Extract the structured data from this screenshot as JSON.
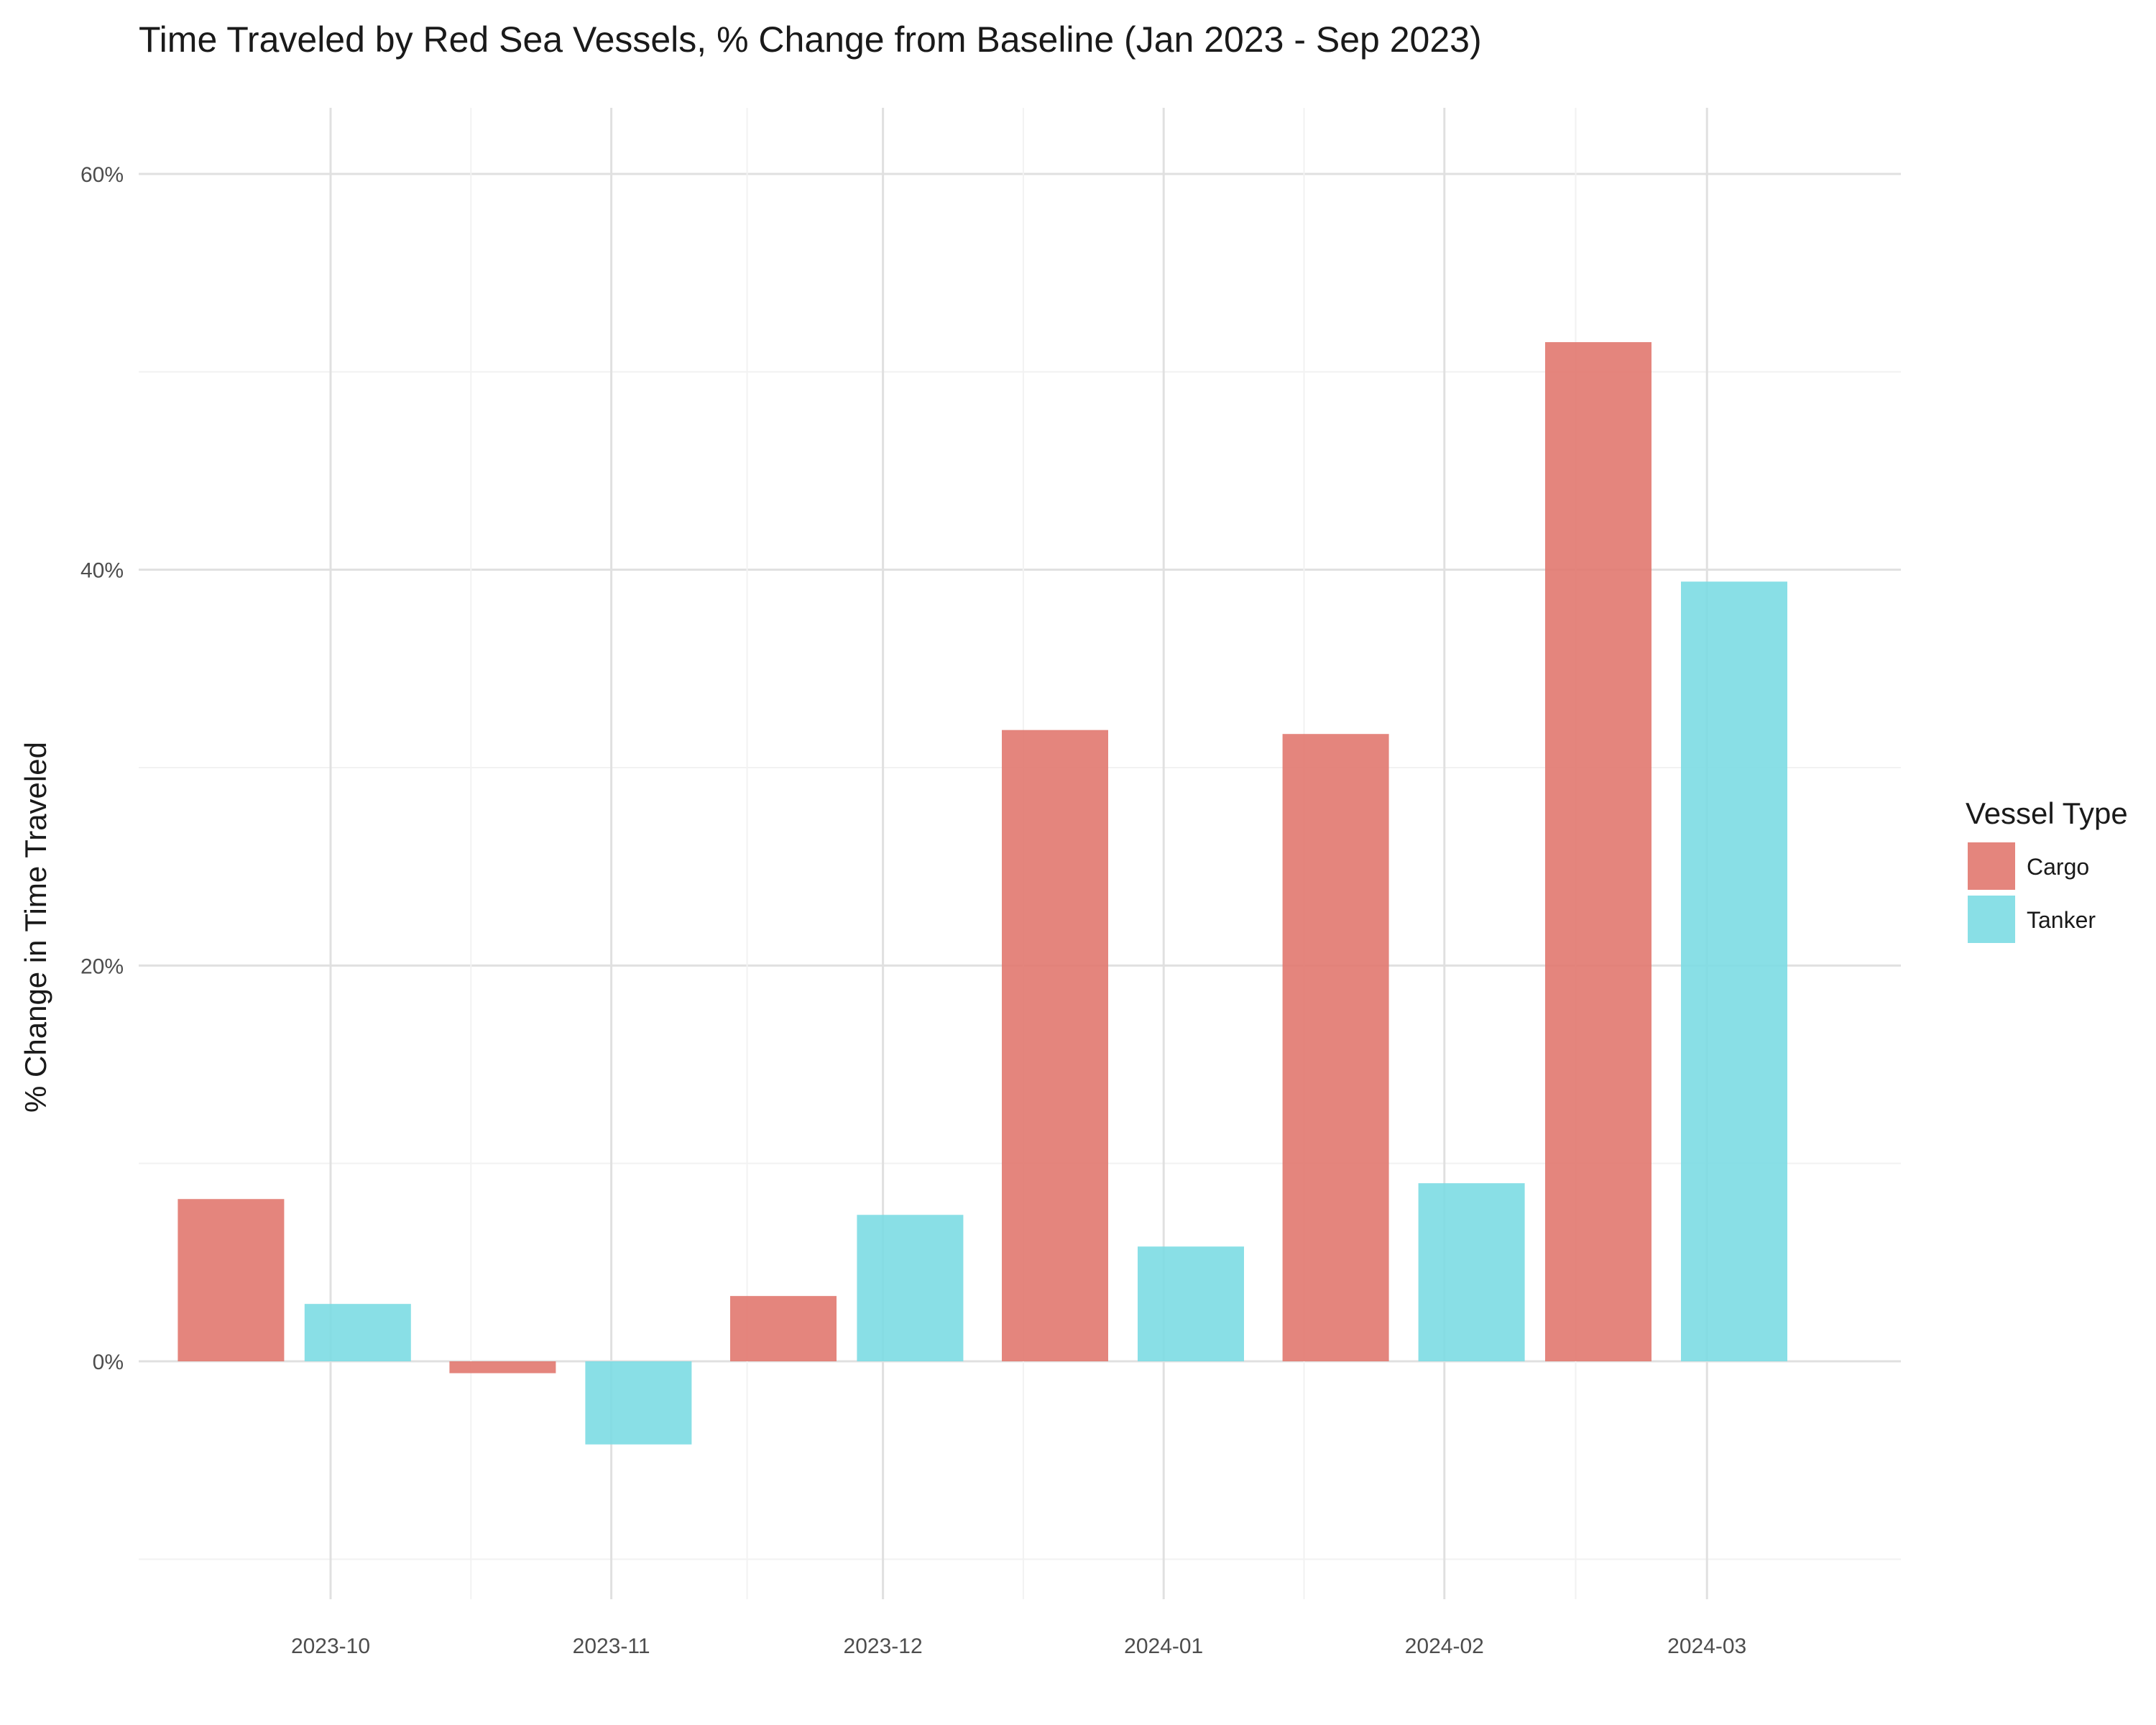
{
  "chart_data": {
    "type": "bar",
    "title": "Time Traveled by Red Sea Vessels, % Change from Baseline (Jan 2023 - Sep 2023)",
    "xlabel": "",
    "ylabel": "% Change in Time Traveled",
    "categories": [
      "2023-10",
      "2023-11",
      "2023-12",
      "2024-01",
      "2024-02",
      "2024-03"
    ],
    "category_centers": [
      "2023-10-01",
      "2023-11-01",
      "2023-12-01",
      "2024-01-01",
      "2024-02-01",
      "2024-03-01"
    ],
    "series": [
      {
        "name": "Cargo",
        "color": "#E1786F",
        "dates": [
          "2023-09-20",
          "2023-10-20",
          "2023-11-20",
          "2023-12-20",
          "2024-01-20",
          "2024-02-18"
        ],
        "values": [
          8.2,
          -0.6,
          3.3,
          31.9,
          31.7,
          51.5
        ]
      },
      {
        "name": "Tanker",
        "color": "#7CDCE3",
        "dates": [
          "2023-10-04",
          "2023-11-04",
          "2023-12-04",
          "2024-01-04",
          "2024-02-04",
          "2024-03-04"
        ],
        "values": [
          2.9,
          -4.2,
          7.4,
          5.8,
          9.0,
          39.4
        ]
      }
    ],
    "ylim": [
      -13,
      64
    ],
    "yticks": [
      0,
      20,
      40,
      60
    ],
    "ytick_labels": [
      "0%",
      "20%",
      "40%",
      "60%"
    ],
    "grid": true,
    "legend": {
      "title": "Vessel Type",
      "position": "right",
      "entries": [
        "Cargo",
        "Tanker"
      ]
    }
  }
}
